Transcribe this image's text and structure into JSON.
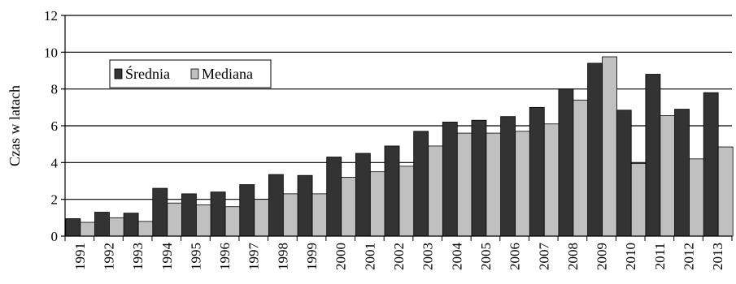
{
  "chart_data": {
    "type": "bar",
    "title": "",
    "xlabel": "",
    "ylabel": "Czas w latach",
    "ylim": [
      0,
      12
    ],
    "yticks": [
      0,
      2,
      4,
      6,
      8,
      10,
      12
    ],
    "grid": true,
    "legend_position": "top-left",
    "categories": [
      "1991",
      "1992",
      "1993",
      "1994",
      "1995",
      "1996",
      "1997",
      "1998",
      "1999",
      "2000",
      "2001",
      "2002",
      "2003",
      "2004",
      "2005",
      "2006",
      "2007",
      "2008",
      "2009",
      "2010",
      "2011",
      "2012",
      "2013"
    ],
    "series": [
      {
        "name": "Średnia",
        "color": "#333333",
        "values": [
          0.95,
          1.3,
          1.25,
          2.6,
          2.3,
          2.4,
          2.8,
          3.35,
          3.3,
          4.3,
          4.5,
          4.9,
          5.7,
          6.2,
          6.3,
          6.5,
          7.0,
          8.0,
          9.4,
          6.85,
          8.8,
          6.9,
          7.8
        ]
      },
      {
        "name": "Mediana",
        "color": "#c0c0c0",
        "values": [
          0.75,
          1.0,
          0.8,
          1.8,
          1.7,
          1.6,
          2.0,
          2.3,
          2.3,
          3.2,
          3.5,
          3.8,
          4.9,
          5.6,
          5.6,
          5.7,
          6.1,
          7.4,
          9.75,
          3.95,
          6.55,
          4.2,
          4.85
        ]
      }
    ]
  }
}
